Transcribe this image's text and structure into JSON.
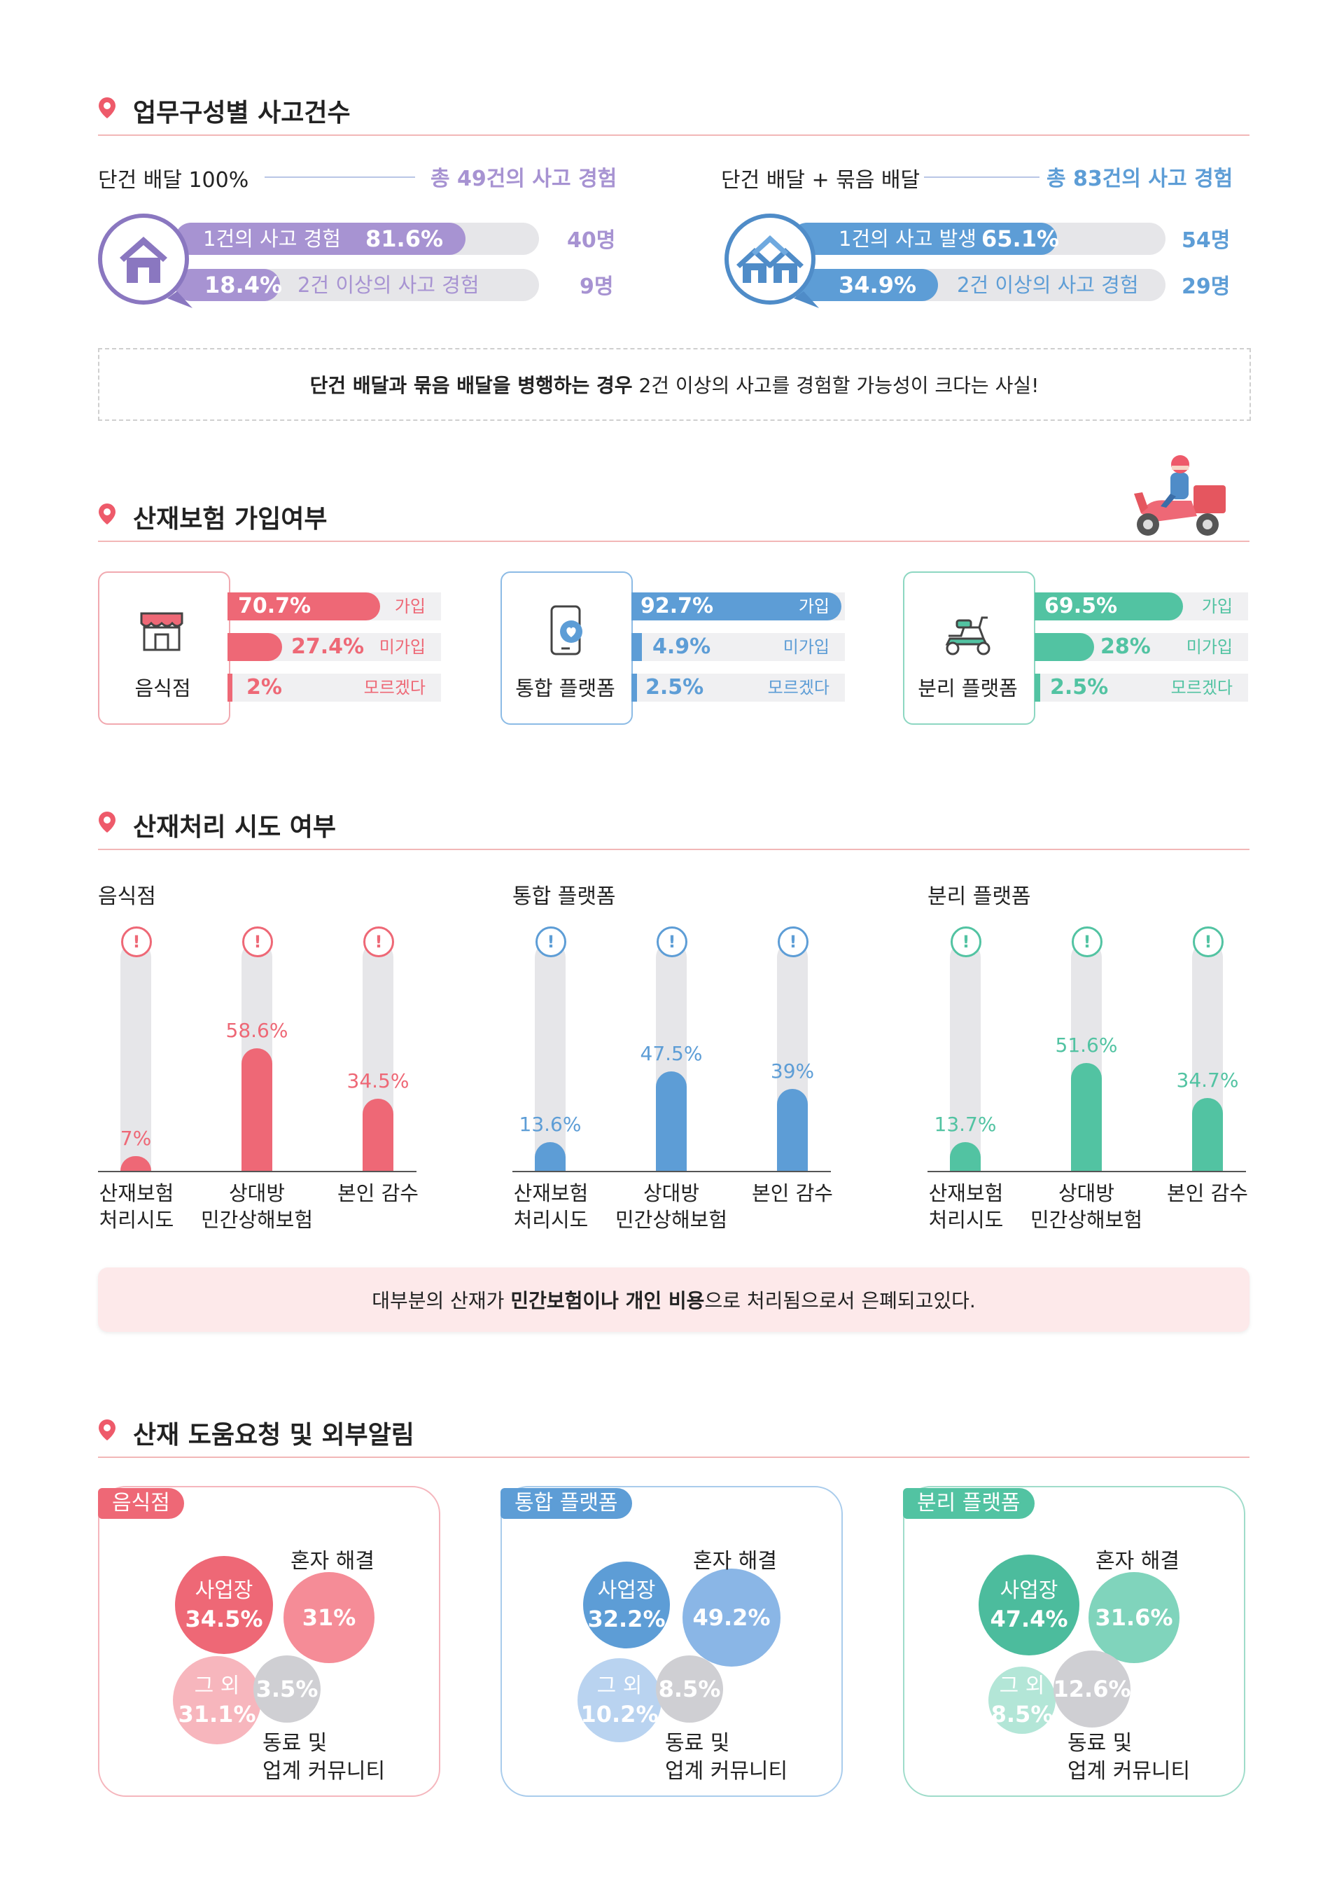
{
  "colors": {
    "purple": "#a793d2",
    "purple_dark": "#8a77c0",
    "blue": "#5d9dd6",
    "blue_dark": "#4f8cc8",
    "red": "#ee6876",
    "teal": "#52c3a2",
    "grey_track": "#e6e6e9",
    "rule": "#f2b7b7",
    "pin": "#ee5a6a"
  },
  "sections": {
    "s1": "업무구성별 사고건수",
    "s2": "산재보험 가입여부",
    "s3": "산재처리 시도 여부",
    "s4": "산재 도움요청 및 외부알림"
  },
  "accidents": {
    "left": {
      "title": "단건 배달 100%",
      "total": "총 49건의 사고 경험",
      "row1_label": "1건의 사고 경험",
      "row1_pct": "81.6%",
      "row1_count": "40명",
      "row2_pct": "18.4%",
      "row2_label": "2건 이상의 사고 경험",
      "row2_count": "9명",
      "icon": "house-icon"
    },
    "right": {
      "title": "단건 배달 + 묶음 배달",
      "total": "총 83건의 사고 경험",
      "row1_label": "1건의 사고 발생",
      "row1_pct": "65.1%",
      "row1_count": "54명",
      "row2_pct": "34.9%",
      "row2_label": "2건 이상의 사고 경험",
      "row2_count": "29명",
      "icon": "houses-icon"
    },
    "note_bold": "단건 배달과 묶음 배달을 병행하는 경우",
    "note_rest": " 2건 이상의 사고를 경험할 가능성이 크다는 사실!"
  },
  "insurance": {
    "groups": [
      {
        "name": "음식점",
        "icon": "store-icon",
        "rows": [
          {
            "pct": "70.7%",
            "label": "가입"
          },
          {
            "pct": "27.4%",
            "label": "미가입"
          },
          {
            "pct": "2%",
            "label": "모르겠다"
          }
        ]
      },
      {
        "name": "통합 플랫폼",
        "icon": "phone-icon",
        "rows": [
          {
            "pct": "92.7%",
            "label": "가입"
          },
          {
            "pct": "4.9%",
            "label": "미가입"
          },
          {
            "pct": "2.5%",
            "label": "모르겠다"
          }
        ]
      },
      {
        "name": "분리 플랫폼",
        "icon": "scooter-icon",
        "rows": [
          {
            "pct": "69.5%",
            "label": "가입"
          },
          {
            "pct": "28%",
            "label": "미가입"
          },
          {
            "pct": "2.5%",
            "label": "모르겠다"
          }
        ]
      }
    ]
  },
  "claims": {
    "note_pre": "대부분의 산재가 ",
    "note_bold1": "민간보험이나 개인 비용",
    "note_post": "으로 처리됨으로서 은폐되고있다.",
    "categories": [
      "산재보험\n처리시도",
      "상대방\n민간상해보험",
      "본인 감수"
    ]
  },
  "help": {
    "groups": [
      {
        "name": "음식점",
        "workplace_label": "사업장",
        "workplace": "34.5%",
        "self_label": "혼자 해결",
        "self": "31%",
        "other_label": "그 외",
        "other": "31.1%",
        "peer": "3.5%",
        "peer_label1": "동료 및",
        "peer_label2": "업계 커뮤니티"
      },
      {
        "name": "통합 플랫폼",
        "workplace_label": "사업장",
        "workplace": "32.2%",
        "self_label": "혼자 해결",
        "self": "49.2%",
        "other_label": "그 외",
        "other": "10.2%",
        "peer": "8.5%",
        "peer_label1": "동료 및",
        "peer_label2": "업계 커뮤니티"
      },
      {
        "name": "분리 플랫폼",
        "workplace_label": "사업장",
        "workplace": "47.4%",
        "self_label": "혼자 해결",
        "self": "31.6%",
        "other_label": "그 외",
        "other": "8.5%",
        "peer": "12.6%",
        "peer_label1": "동료 및",
        "peer_label2": "업계 커뮤니티"
      }
    ]
  },
  "chart_data": [
    {
      "type": "bar",
      "title": "업무구성별 사고건수 — 단건 배달 100%",
      "categories": [
        "1건의 사고 경험",
        "2건 이상의 사고 경험"
      ],
      "values": [
        81.6,
        18.4
      ],
      "counts": [
        40,
        9
      ],
      "ylim": [
        0,
        100
      ]
    },
    {
      "type": "bar",
      "title": "업무구성별 사고건수 — 단건 배달 + 묶음 배달",
      "categories": [
        "1건의 사고 발생",
        "2건 이상의 사고 경험"
      ],
      "values": [
        65.1,
        34.9
      ],
      "counts": [
        54,
        29
      ],
      "ylim": [
        0,
        100
      ]
    },
    {
      "type": "bar",
      "title": "산재보험 가입여부",
      "categories": [
        "가입",
        "미가입",
        "모르겠다"
      ],
      "series": [
        {
          "name": "음식점",
          "values": [
            70.7,
            27.4,
            2
          ]
        },
        {
          "name": "통합 플랫폼",
          "values": [
            92.7,
            4.9,
            2.5
          ]
        },
        {
          "name": "분리 플랫폼",
          "values": [
            69.5,
            28,
            2.5
          ]
        }
      ],
      "ylim": [
        0,
        100
      ]
    },
    {
      "type": "bar",
      "title": "산재처리 시도 여부",
      "categories": [
        "산재보험 처리시도",
        "상대방 민간상해보험",
        "본인 감수"
      ],
      "series": [
        {
          "name": "음식점",
          "values": [
            7,
            58.6,
            34.5
          ]
        },
        {
          "name": "통합 플랫폼",
          "values": [
            13.6,
            47.5,
            39
          ]
        },
        {
          "name": "분리 플랫폼",
          "values": [
            13.7,
            51.6,
            34.7
          ]
        }
      ],
      "ylim": [
        0,
        100
      ]
    },
    {
      "type": "bubble",
      "title": "산재 도움요청 및 외부알림",
      "categories": [
        "사업장",
        "혼자 해결",
        "그 외",
        "동료 및 업계 커뮤니티"
      ],
      "series": [
        {
          "name": "음식점",
          "values": [
            34.5,
            31,
            31.1,
            3.5
          ]
        },
        {
          "name": "통합 플랫폼",
          "values": [
            32.2,
            49.2,
            10.2,
            8.5
          ]
        },
        {
          "name": "분리 플랫폼",
          "values": [
            47.4,
            31.6,
            8.5,
            12.6
          ]
        }
      ]
    }
  ]
}
